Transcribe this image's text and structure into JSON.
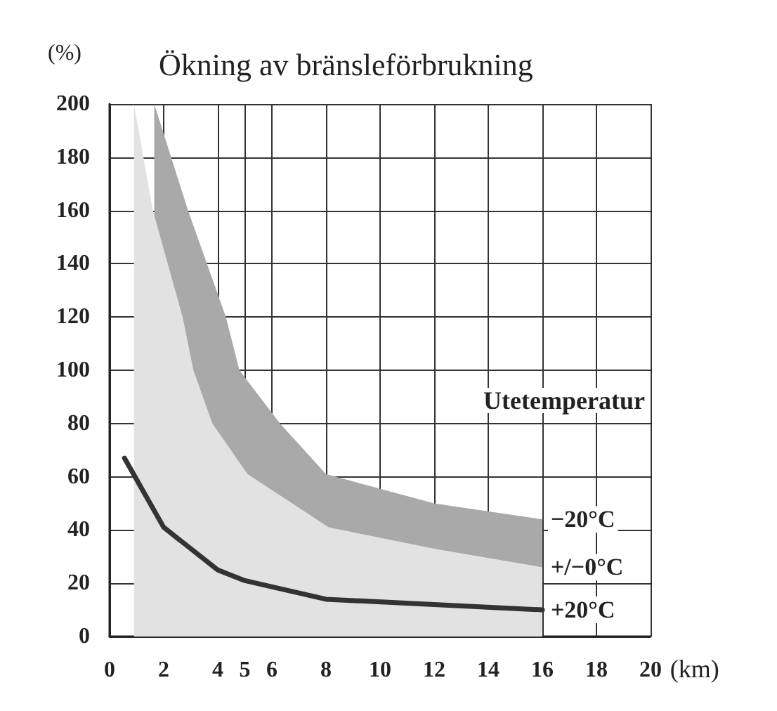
{
  "chart_data": {
    "type": "area",
    "title": "Ökning av bränsleförbrukning",
    "xlabel": "(km)",
    "ylabel": "(%)",
    "legend_title": "Utetemperatur",
    "xlim": [
      0,
      20
    ],
    "xticks": [
      0,
      2,
      4,
      5,
      6,
      8,
      10,
      12,
      14,
      16,
      18,
      20
    ],
    "ylim": [
      0,
      200
    ],
    "yticks": [
      0,
      20,
      40,
      60,
      80,
      100,
      120,
      140,
      160,
      180,
      200
    ],
    "grid": true,
    "legend": false,
    "series": [
      {
        "name": "−20°C",
        "color": "#a9a9a9",
        "x": [
          1.65,
          2.9,
          4.3,
          4.8,
          6.3,
          8,
          12,
          16
        ],
        "values": [
          200,
          160,
          120,
          100,
          80,
          61,
          50,
          44
        ]
      },
      {
        "name": "+/−0°C",
        "color": "#e2e2e2",
        "x": [
          0.9,
          1.6,
          2.7,
          3.1,
          3.8,
          5.1,
          8.1,
          12,
          16
        ],
        "values": [
          200,
          160,
          120,
          100,
          80,
          61,
          41,
          33,
          26
        ]
      },
      {
        "name": "+20°C",
        "type": "line",
        "color": "#333333",
        "x": [
          0.55,
          2,
          4,
          5,
          8,
          12,
          16
        ],
        "values": [
          67,
          41,
          25,
          21,
          14,
          12,
          10
        ]
      }
    ]
  }
}
